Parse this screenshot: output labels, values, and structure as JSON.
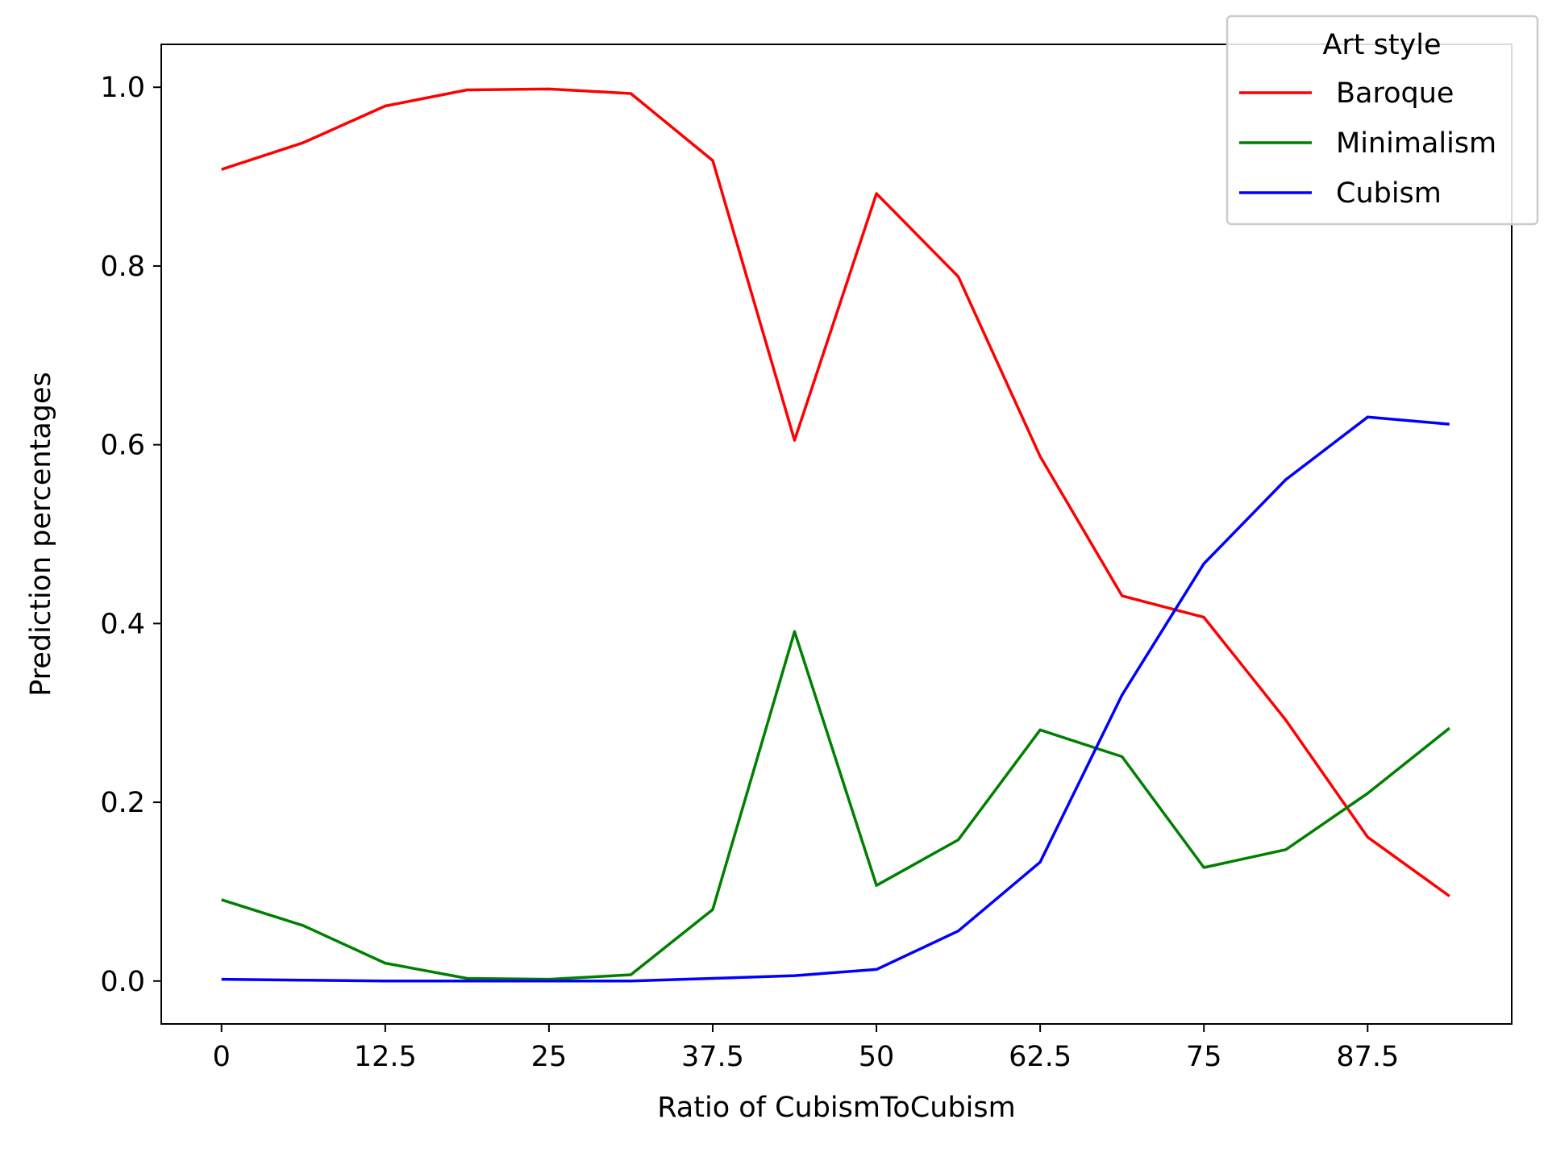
{
  "chart_data": {
    "type": "line",
    "title": "",
    "xlabel": "Ratio of CubismToCubism",
    "ylabel": "Prediction percentages",
    "x": [
      0,
      6.25,
      12.5,
      18.75,
      25,
      31.25,
      37.5,
      43.75,
      50,
      56.25,
      62.5,
      68.75,
      75,
      81.25,
      87.5,
      93.75
    ],
    "xticks": [
      0,
      12.5,
      25,
      37.5,
      50,
      62.5,
      75,
      87.5
    ],
    "xtick_labels": [
      "0",
      "12.5",
      "25",
      "37.5",
      "50",
      "62.5",
      "75",
      "87.5"
    ],
    "yticks": [
      0.0,
      0.2,
      0.4,
      0.6,
      0.8,
      1.0
    ],
    "ytick_labels": [
      "0.0",
      "0.2",
      "0.4",
      "0.6",
      "0.8",
      "1.0"
    ],
    "xlim": [
      -4.6,
      98.5
    ],
    "ylim": [
      -0.048,
      1.048
    ],
    "grid": false,
    "legend": {
      "title": "Art style",
      "placement": "top-right"
    },
    "series": [
      {
        "name": "Baroque",
        "color": "#ff0000",
        "values": [
          0.908,
          0.938,
          0.979,
          0.997,
          0.998,
          0.993,
          0.918,
          0.605,
          0.881,
          0.788,
          0.587,
          0.431,
          0.407,
          0.292,
          0.161,
          0.095
        ]
      },
      {
        "name": "Minimalism",
        "color": "#008000",
        "values": [
          0.091,
          0.062,
          0.02,
          0.003,
          0.002,
          0.007,
          0.08,
          0.391,
          0.107,
          0.158,
          0.281,
          0.251,
          0.127,
          0.147,
          0.21,
          0.283
        ]
      },
      {
        "name": "Cubism",
        "color": "#0000ff",
        "values": [
          0.002,
          0.001,
          0.0,
          0.0,
          0.0,
          0.0,
          0.003,
          0.006,
          0.013,
          0.056,
          0.133,
          0.32,
          0.467,
          0.561,
          0.631,
          0.623
        ]
      }
    ]
  }
}
